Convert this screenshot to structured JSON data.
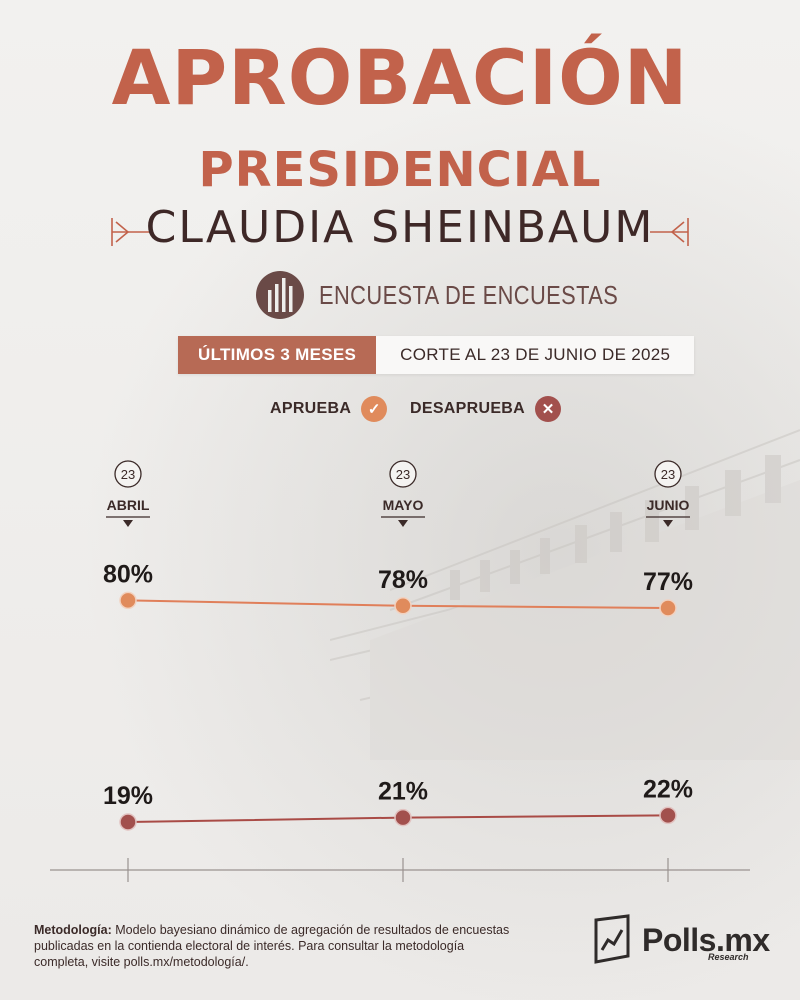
{
  "header": {
    "title_line1": "APROBACIÓN",
    "title_line2": "PRESIDENCIAL",
    "subject": "CLAUDIA SHEINBAUM",
    "subtitle": "ENCUESTA DE ENCUESTAS"
  },
  "period": {
    "range_label": "ÚLTIMOS 3 MESES",
    "cutoff_label": "CORTE AL 23 DE JUNIO DE 2025"
  },
  "legend": {
    "approve_label": "APRUEBA",
    "disapprove_label": "DESAPRUEBA"
  },
  "colors": {
    "title": "#c2624b",
    "approve": "#e08b5c",
    "approve_line": "#e07f5a",
    "disapprove": "#a2504d",
    "disapprove_line": "#a94b46"
  },
  "chart_data": {
    "type": "line",
    "x": [
      {
        "day": "23",
        "month": "ABRIL"
      },
      {
        "day": "23",
        "month": "MAYO"
      },
      {
        "day": "23",
        "month": "JUNIO"
      }
    ],
    "series": [
      {
        "name": "APRUEBA",
        "values": [
          80,
          78,
          77
        ],
        "labels": [
          "80%",
          "78%",
          "77%"
        ]
      },
      {
        "name": "DESAPRUEBA",
        "values": [
          19,
          21,
          22
        ],
        "labels": [
          "19%",
          "21%",
          "22%"
        ]
      }
    ]
  },
  "footer": {
    "methodology_label": "Metodología:",
    "methodology_text": " Modelo bayesiano dinámico de agregación de resultados de encuestas publicadas en la contienda electoral de interés. Para consultar la metodología completa, visite polls.mx/metodología/.",
    "brand": "Polls.mx",
    "brand_sub": "Research"
  }
}
